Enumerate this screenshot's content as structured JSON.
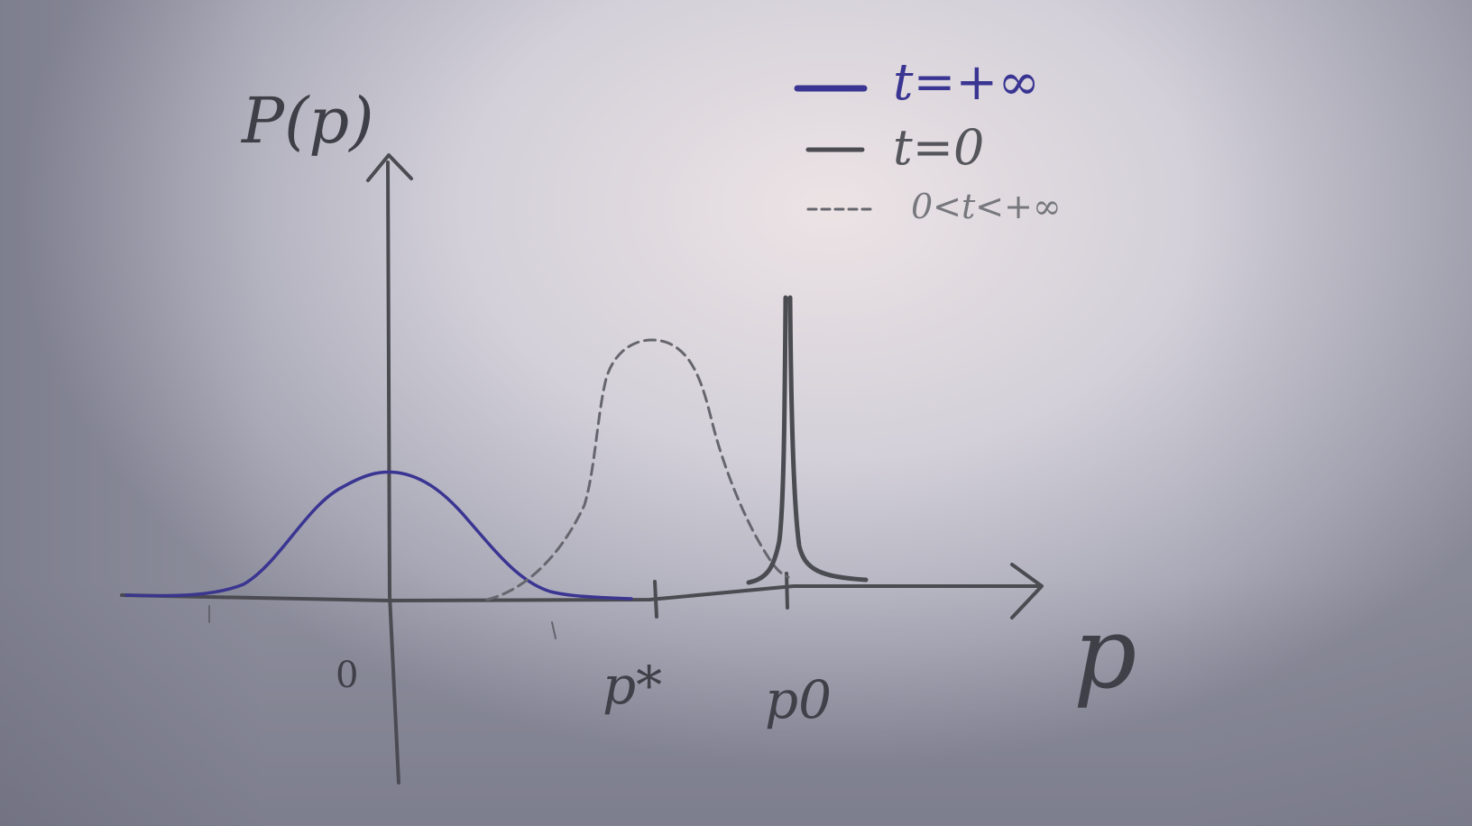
{
  "axes": {
    "y_label": "P(p)",
    "x_label": "p",
    "tick_labels": {
      "origin": "0",
      "p_star": "p*",
      "p_zero": "p0"
    }
  },
  "legend": {
    "entries": [
      {
        "label": "t=+∞",
        "style": "solid-bold",
        "color": "#3a3592"
      },
      {
        "label": "t=0",
        "style": "solid",
        "color": "#55555c"
      },
      {
        "label": "0<t<+∞",
        "style": "dashed",
        "color": "#77777e"
      }
    ]
  },
  "colors": {
    "ink": "#4b4b52",
    "blue_ink": "#3a3592",
    "paper": "#d3d0d9"
  }
}
